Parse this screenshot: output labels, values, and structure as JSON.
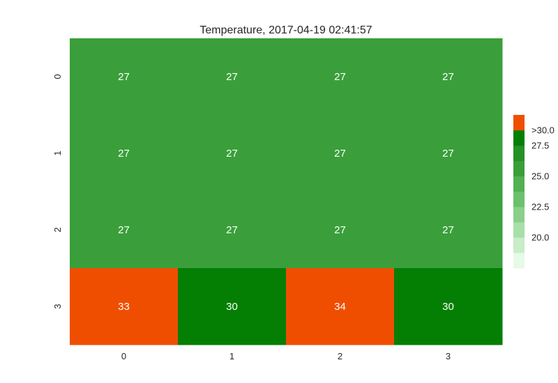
{
  "chart_data": {
    "type": "heatmap",
    "title": "Temperature, 2017-04-19 02:41:57",
    "xlabel": "",
    "ylabel": "",
    "x_categories": [
      "0",
      "1",
      "2",
      "3"
    ],
    "y_categories": [
      "0",
      "1",
      "2",
      "3"
    ],
    "values": [
      [
        27,
        27,
        27,
        27
      ],
      [
        27,
        27,
        27,
        27
      ],
      [
        27,
        27,
        27,
        27
      ],
      [
        33,
        30,
        34,
        30
      ]
    ],
    "annotations": true,
    "colorbar": {
      "labels": [
        "20.0",
        "22.5",
        "25.0",
        "27.5",
        ">30.0"
      ],
      "colors": [
        "#e6fae6",
        "#c8edc8",
        "#a8dfa8",
        "#8ad08a",
        "#6cc16c",
        "#52b152",
        "#3a9f3a",
        "#249124",
        "#047f04",
        "#ef4e01"
      ],
      "levels": [
        18,
        20,
        21,
        23,
        24,
        26,
        27,
        28,
        30,
        31
      ]
    }
  }
}
